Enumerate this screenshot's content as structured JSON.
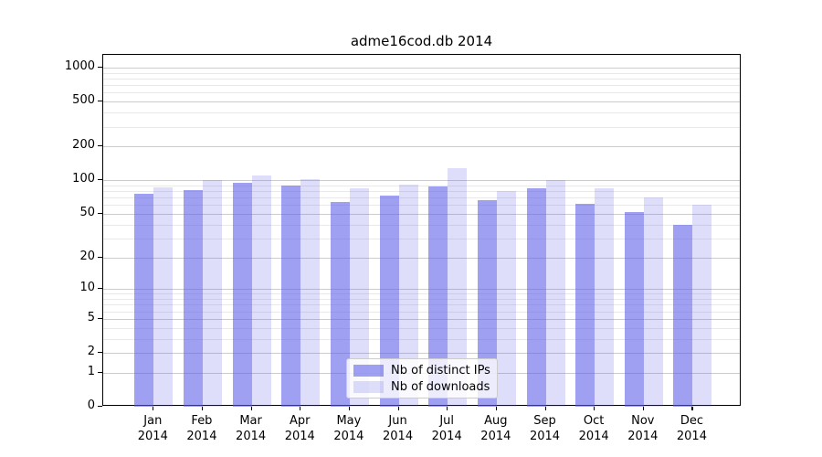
{
  "chart_data": {
    "type": "bar",
    "title": "adme16cod.db 2014",
    "categories": [
      "Jan",
      "Feb",
      "Mar",
      "Apr",
      "May",
      "Jun",
      "Jul",
      "Aug",
      "Sep",
      "Oct",
      "Nov",
      "Dec"
    ],
    "category_year": "2014",
    "series": [
      {
        "name": "Nb of distinct IPs",
        "color": "rgba(92,92,232,0.58)",
        "values": [
          75,
          81,
          95,
          90,
          64,
          73,
          88,
          66,
          85,
          62,
          52,
          40
        ]
      },
      {
        "name": "Nb of downloads",
        "color": "rgba(92,92,232,0.20)",
        "values": [
          86,
          101,
          110,
          102,
          84,
          92,
          127,
          80,
          101,
          84,
          70,
          60
        ]
      }
    ],
    "xlabel": "",
    "ylabel": "",
    "y_scale": "log10(value+1)",
    "ylim": [
      0,
      1300
    ],
    "y_ticks": [
      0,
      1,
      2,
      5,
      10,
      20,
      50,
      100,
      200,
      500,
      1000
    ],
    "y_minor_gridlines": [
      3,
      4,
      6,
      7,
      8,
      9,
      30,
      40,
      60,
      70,
      80,
      90,
      300,
      400,
      600,
      700,
      800,
      900
    ],
    "grid": true,
    "legend_position": "bottom-center",
    "colors": {
      "axis": "#000000",
      "text": "#000000",
      "grid_major": "#cccccc",
      "grid_minor": "#e9e9e9",
      "bar_dark_on_white": "#a3a3f0",
      "bar_light_on_white": "#dedef9",
      "legend_border": "#cccccc",
      "legend_bg": "rgba(255,255,255,0.8)"
    }
  }
}
